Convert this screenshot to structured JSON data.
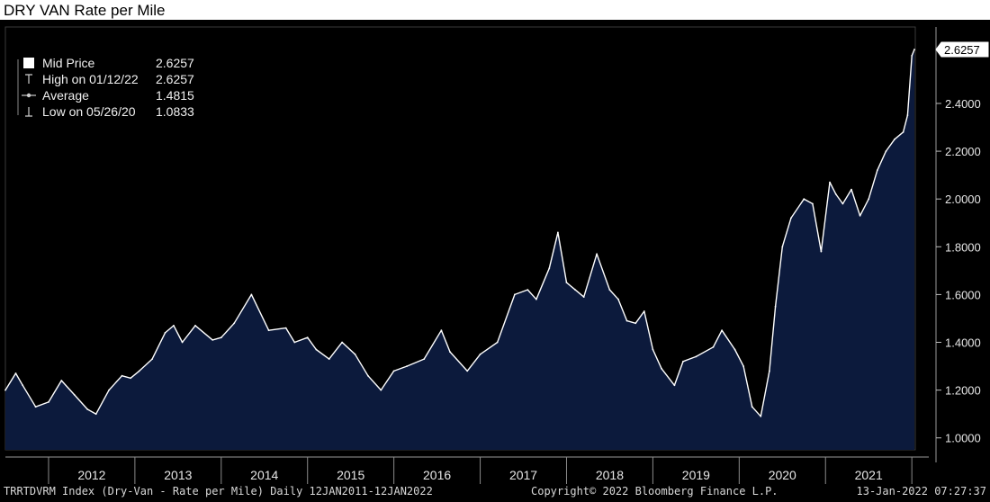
{
  "title": "DRY VAN Rate per Mile",
  "legend": [
    {
      "icon": "square-icon",
      "label": "Mid Price",
      "value": "2.6257"
    },
    {
      "icon": "high-marker-icon",
      "label": "High on 01/12/22",
      "value": "2.6257"
    },
    {
      "icon": "average-marker-icon",
      "label": "Average",
      "value": "1.4815"
    },
    {
      "icon": "low-marker-icon",
      "label": "Low on 05/26/20",
      "value": "1.0833"
    }
  ],
  "last_value_tag": "2.6257",
  "footer": {
    "left": "TRRTDVRM Index (Dry-Van - Rate per Mile)  Daily 12JAN2011-12JAN2022",
    "center": "Copyright© 2022 Bloomberg Finance L.P.",
    "right": "13-Jan-2022 07:27:37"
  },
  "colors": {
    "background": "#000000",
    "area_fill": "#0c1a3c",
    "line": "#ffffff",
    "text": "#e6e6e6"
  },
  "chart_data": {
    "type": "area",
    "title": "DRY VAN Rate per Mile",
    "xlabel": "",
    "ylabel": "",
    "ylim": [
      0.95,
      2.72
    ],
    "yticks": [
      1.0,
      1.2,
      1.4,
      1.6,
      1.8,
      2.0,
      2.2,
      2.4
    ],
    "ytick_labels": [
      "1.0000",
      "1.2000",
      "1.4000",
      "1.6000",
      "1.8000",
      "2.0000",
      "2.2000",
      "2.4000"
    ],
    "xlim": [
      2011.5,
      2022.04
    ],
    "xtick_labels": [
      "2012",
      "2013",
      "2014",
      "2015",
      "2016",
      "2017",
      "2018",
      "2019",
      "2020",
      "2021"
    ],
    "grid": false,
    "legend_position": "top-left",
    "series": [
      {
        "name": "Mid Price",
        "x": [
          2011.5,
          2011.62,
          2011.7,
          2011.85,
          2012.0,
          2012.15,
          2012.3,
          2012.45,
          2012.55,
          2012.7,
          2012.85,
          2012.95,
          2013.05,
          2013.2,
          2013.35,
          2013.45,
          2013.55,
          2013.7,
          2013.9,
          2014.0,
          2014.15,
          2014.35,
          2014.55,
          2014.75,
          2014.85,
          2015.0,
          2015.1,
          2015.25,
          2015.4,
          2015.55,
          2015.7,
          2015.85,
          2016.0,
          2016.15,
          2016.35,
          2016.55,
          2016.65,
          2016.85,
          2017.0,
          2017.2,
          2017.4,
          2017.55,
          2017.65,
          2017.8,
          2017.9,
          2018.0,
          2018.1,
          2018.2,
          2018.35,
          2018.5,
          2018.6,
          2018.7,
          2018.8,
          2018.9,
          2019.0,
          2019.1,
          2019.25,
          2019.35,
          2019.5,
          2019.7,
          2019.8,
          2019.95,
          2020.05,
          2020.15,
          2020.25,
          2020.35,
          2020.42,
          2020.5,
          2020.6,
          2020.75,
          2020.85,
          2020.95,
          2021.05,
          2021.12,
          2021.2,
          2021.3,
          2021.4,
          2021.5,
          2021.6,
          2021.7,
          2021.8,
          2021.9,
          2021.95,
          2022.0,
          2022.03
        ],
        "values": [
          1.2,
          1.27,
          1.22,
          1.13,
          1.15,
          1.24,
          1.18,
          1.12,
          1.1,
          1.2,
          1.26,
          1.25,
          1.28,
          1.33,
          1.44,
          1.47,
          1.4,
          1.47,
          1.41,
          1.42,
          1.48,
          1.6,
          1.45,
          1.46,
          1.4,
          1.42,
          1.37,
          1.33,
          1.4,
          1.35,
          1.26,
          1.2,
          1.28,
          1.3,
          1.33,
          1.45,
          1.36,
          1.28,
          1.35,
          1.4,
          1.6,
          1.62,
          1.58,
          1.71,
          1.86,
          1.65,
          1.62,
          1.59,
          1.77,
          1.62,
          1.58,
          1.49,
          1.48,
          1.53,
          1.37,
          1.29,
          1.22,
          1.32,
          1.34,
          1.38,
          1.45,
          1.37,
          1.3,
          1.13,
          1.09,
          1.28,
          1.55,
          1.8,
          1.92,
          2.0,
          1.98,
          1.78,
          2.07,
          2.02,
          1.98,
          2.04,
          1.93,
          2.0,
          2.12,
          2.2,
          2.25,
          2.28,
          2.35,
          2.6,
          2.6257
        ]
      }
    ]
  }
}
